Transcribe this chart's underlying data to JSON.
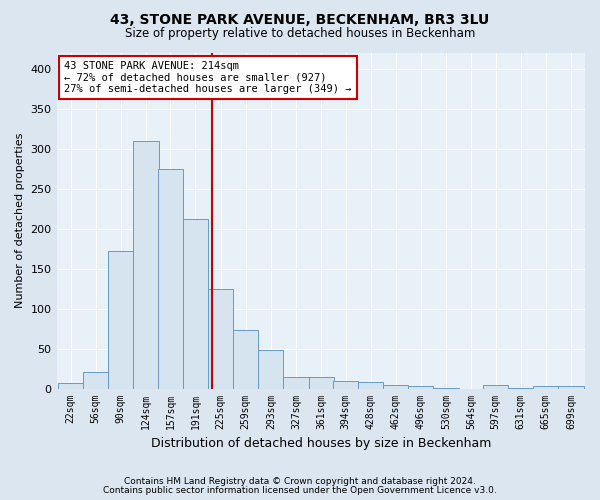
{
  "title": "43, STONE PARK AVENUE, BECKENHAM, BR3 3LU",
  "subtitle": "Size of property relative to detached houses in Beckenham",
  "xlabel": "Distribution of detached houses by size in Beckenham",
  "ylabel": "Number of detached properties",
  "bar_labels": [
    "22sqm",
    "56sqm",
    "90sqm",
    "124sqm",
    "157sqm",
    "191sqm",
    "225sqm",
    "259sqm",
    "293sqm",
    "327sqm",
    "361sqm",
    "394sqm",
    "428sqm",
    "462sqm",
    "496sqm",
    "530sqm",
    "564sqm",
    "597sqm",
    "631sqm",
    "665sqm",
    "699sqm"
  ],
  "bar_values": [
    7,
    21,
    172,
    310,
    275,
    212,
    125,
    73,
    48,
    15,
    14,
    10,
    8,
    4,
    3,
    1,
    0,
    4,
    1,
    3,
    3
  ],
  "bar_color": "#d6e4f0",
  "bar_edge_color": "#6699cc",
  "vline_x": 214,
  "vline_color": "#cc0000",
  "bin_width": 34,
  "annotation_text": "43 STONE PARK AVENUE: 214sqm\n← 72% of detached houses are smaller (927)\n27% of semi-detached houses are larger (349) →",
  "annotation_box_color": "#ffffff",
  "annotation_box_edge_color": "#cc0000",
  "ylim": [
    0,
    420
  ],
  "yticks": [
    0,
    50,
    100,
    150,
    200,
    250,
    300,
    350,
    400
  ],
  "footer1": "Contains HM Land Registry data © Crown copyright and database right 2024.",
  "footer2": "Contains public sector information licensed under the Open Government Licence v3.0.",
  "bg_color": "#dce6f0",
  "plot_bg_color": "#e8f0f8",
  "title_fontsize": 10,
  "subtitle_fontsize": 8.5,
  "ylabel_fontsize": 8,
  "xlabel_fontsize": 9,
  "tick_fontsize": 7,
  "footer_fontsize": 6.5,
  "ann_fontsize": 7.5
}
